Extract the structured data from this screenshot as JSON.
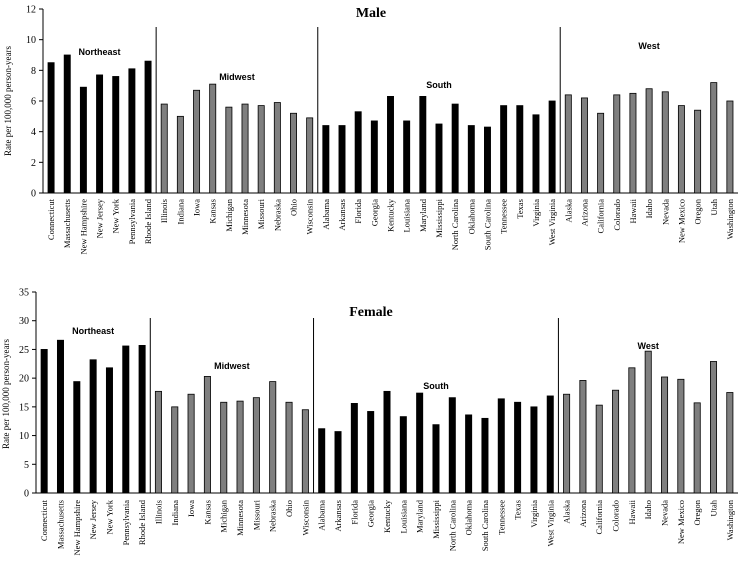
{
  "chart_data": [
    {
      "type": "bar",
      "title": "Male",
      "ylabel": "Rate per 100,000 person-years",
      "ylim": [
        0,
        12
      ],
      "yticks": [
        0,
        2,
        4,
        6,
        8,
        10,
        12
      ],
      "categories": [
        "Connecticut",
        "Massachusetts",
        "New Hampshire",
        "New Jersey",
        "New York",
        "Pennsylvania",
        "Rhode Island",
        "Illinois",
        "Indiana",
        "Iowa",
        "Kansas",
        "Michigan",
        "Minnesota",
        "Missouri",
        "Nebraska",
        "Ohio",
        "Wisconsin",
        "Alabama",
        "Arkansas",
        "Florida",
        "Georgia",
        "Kentucky",
        "Louisiana",
        "Maryland",
        "Mississippi",
        "North Carolina",
        "Oklahoma",
        "South Carolina",
        "Tennessee",
        "Texas",
        "Virginia",
        "West Virginia",
        "Alaska",
        "Arizona",
        "California",
        "Colorado",
        "Hawaii",
        "Idaho",
        "Nevada",
        "New Mexico",
        "Oregon",
        "Utah",
        "Washington"
      ],
      "values": [
        8.5,
        9.0,
        6.9,
        7.7,
        7.6,
        8.1,
        8.6,
        5.8,
        5.0,
        6.7,
        7.1,
        5.6,
        5.8,
        5.7,
        5.9,
        5.2,
        4.9,
        4.4,
        4.4,
        5.3,
        4.7,
        6.3,
        4.7,
        6.3,
        4.5,
        5.8,
        4.4,
        4.3,
        5.7,
        5.7,
        5.1,
        6.0,
        6.4,
        6.2,
        5.2,
        6.4,
        6.5,
        6.8,
        6.6,
        5.7,
        5.4,
        7.2,
        6.0
      ],
      "regions": [
        {
          "name": "Northeast",
          "count": 7,
          "color": "#000000"
        },
        {
          "name": "Midwest",
          "count": 10,
          "color": "#7f7f7f"
        },
        {
          "name": "South",
          "count": 15,
          "color": "#000000"
        },
        {
          "name": "West",
          "count": 11,
          "color": "#7f7f7f"
        }
      ],
      "grid": false
    },
    {
      "type": "bar",
      "title": "Female",
      "ylabel": "Rate per 100,000 person-years",
      "ylim": [
        0,
        35
      ],
      "yticks": [
        0,
        5,
        10,
        15,
        20,
        25,
        30,
        35
      ],
      "categories": [
        "Connecticut",
        "Massachusetts",
        "New Hampshire",
        "New Jersey",
        "New York",
        "Pennsylvania",
        "Rhode Island",
        "Illinois",
        "Indiana",
        "Iowa",
        "Kansas",
        "Michigan",
        "Minnesota",
        "Missouri",
        "Nebraska",
        "Ohio",
        "Wisconsin",
        "Alabama",
        "Arkansas",
        "Florida",
        "Georgia",
        "Kentucky",
        "Louisiana",
        "Maryland",
        "Mississippi",
        "North Carolina",
        "Oklahoma",
        "South Carolina",
        "Tennessee",
        "Texas",
        "Virginia",
        "West Virginia",
        "Alaska",
        "Arizona",
        "California",
        "Colorado",
        "Hawaii",
        "Idaho",
        "Nevada",
        "New Mexico",
        "Oregon",
        "Utah",
        "Washington"
      ],
      "values": [
        25.0,
        26.6,
        19.4,
        23.2,
        21.8,
        25.6,
        25.7,
        17.7,
        15.0,
        17.2,
        20.3,
        15.8,
        16.0,
        16.6,
        19.4,
        15.8,
        14.5,
        11.2,
        10.7,
        15.6,
        14.2,
        17.7,
        13.3,
        17.4,
        11.9,
        16.6,
        13.6,
        13.0,
        16.4,
        15.8,
        15.0,
        16.9,
        17.2,
        19.6,
        15.3,
        17.9,
        21.8,
        24.7,
        20.2,
        19.8,
        15.7,
        22.9,
        17.5
      ],
      "regions": [
        {
          "name": "Northeast",
          "count": 7,
          "color": "#000000"
        },
        {
          "name": "Midwest",
          "count": 10,
          "color": "#7f7f7f"
        },
        {
          "name": "South",
          "count": 15,
          "color": "#000000"
        },
        {
          "name": "West",
          "count": 11,
          "color": "#7f7f7f"
        }
      ],
      "grid": false
    }
  ]
}
